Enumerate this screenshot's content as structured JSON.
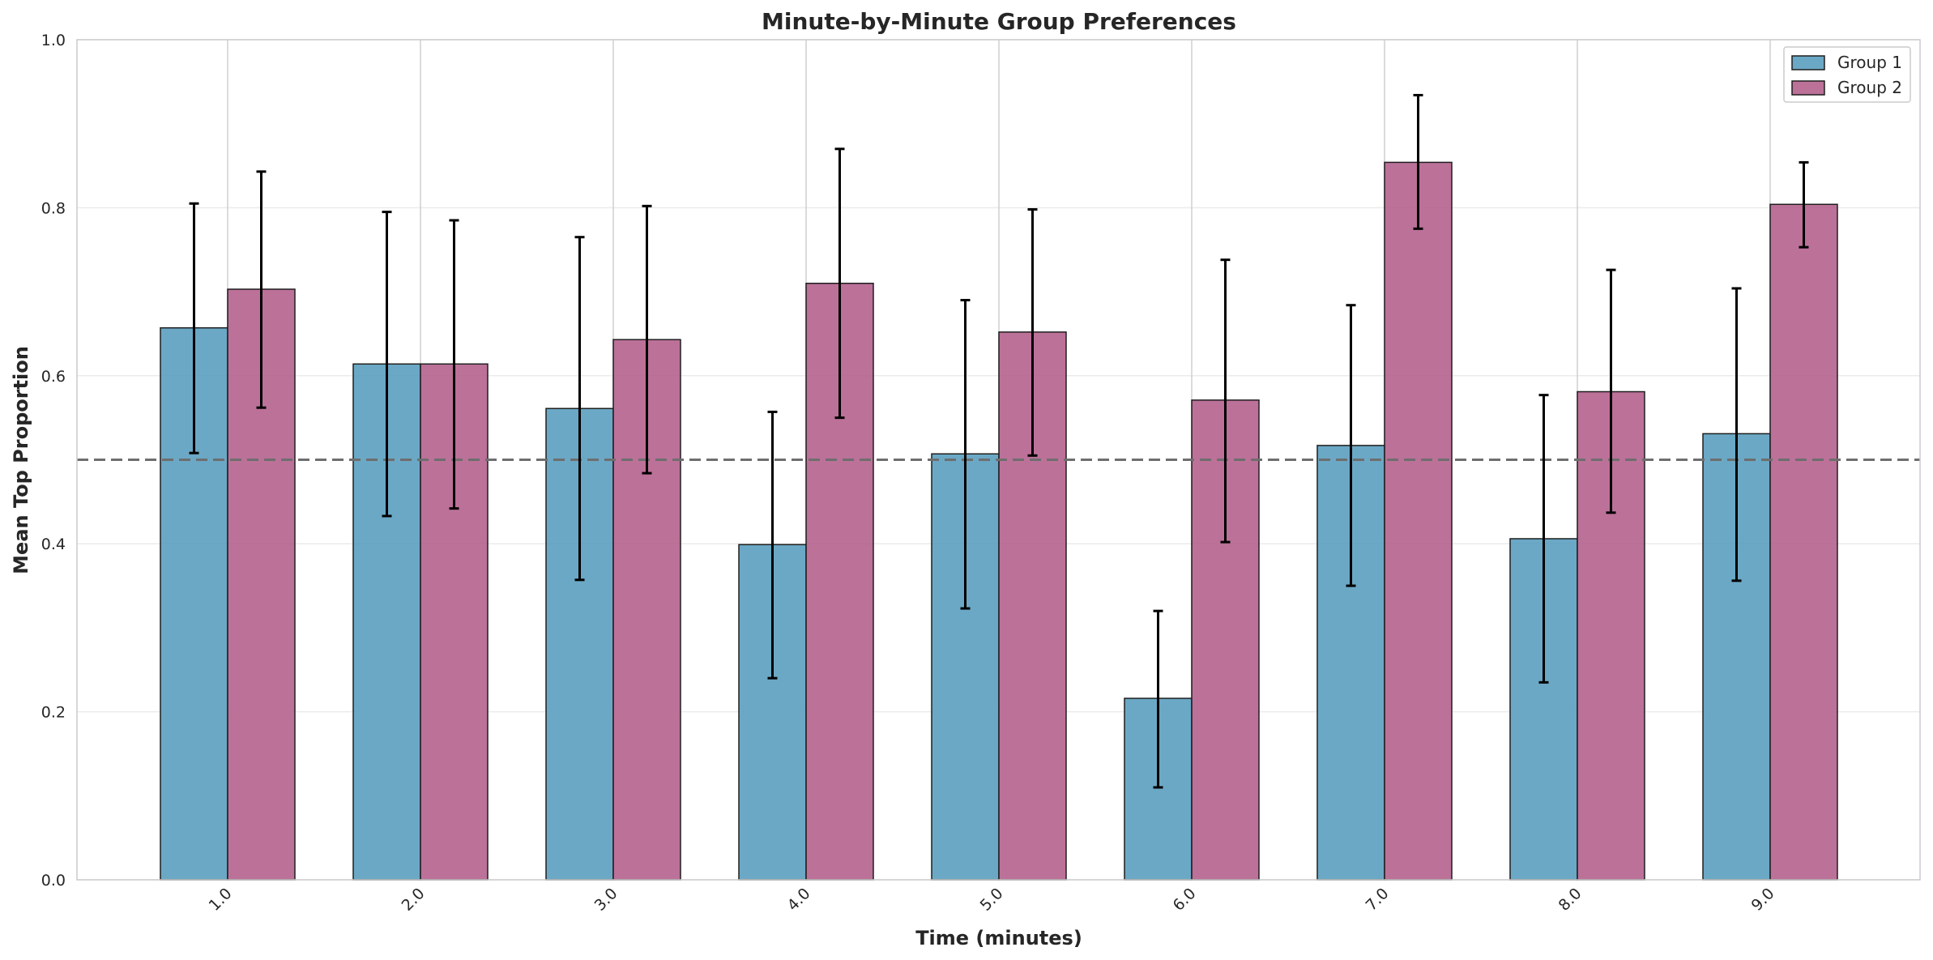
{
  "chart_data": {
    "type": "bar",
    "title": "Minute-by-Minute Group Preferences",
    "xlabel": "Time (minutes)",
    "ylabel": "Mean Top Proportion",
    "categories": [
      "1.0",
      "2.0",
      "3.0",
      "4.0",
      "5.0",
      "6.0",
      "7.0",
      "8.0",
      "9.0"
    ],
    "ylim": [
      0,
      1.0
    ],
    "yticks": [
      "0.0",
      "0.2",
      "0.4",
      "0.6",
      "0.8",
      "1.0"
    ],
    "reference_line": 0.5,
    "grid": true,
    "legend_position": "top-right",
    "series": [
      {
        "name": "Group 1",
        "color": "#5b9ebf",
        "values": [
          0.657,
          0.614,
          0.561,
          0.399,
          0.507,
          0.216,
          0.517,
          0.406,
          0.531
        ],
        "err_low": [
          0.508,
          0.433,
          0.357,
          0.24,
          0.323,
          0.11,
          0.35,
          0.235,
          0.356
        ],
        "err_high": [
          0.805,
          0.795,
          0.765,
          0.557,
          0.69,
          0.32,
          0.684,
          0.577,
          0.704
        ]
      },
      {
        "name": "Group 2",
        "color": "#b5628e",
        "values": [
          0.703,
          0.614,
          0.643,
          0.71,
          0.652,
          0.571,
          0.854,
          0.581,
          0.804
        ],
        "err_low": [
          0.562,
          0.442,
          0.484,
          0.55,
          0.505,
          0.402,
          0.775,
          0.437,
          0.753
        ],
        "err_high": [
          0.843,
          0.785,
          0.802,
          0.87,
          0.798,
          0.738,
          0.934,
          0.726,
          0.854
        ]
      }
    ]
  }
}
